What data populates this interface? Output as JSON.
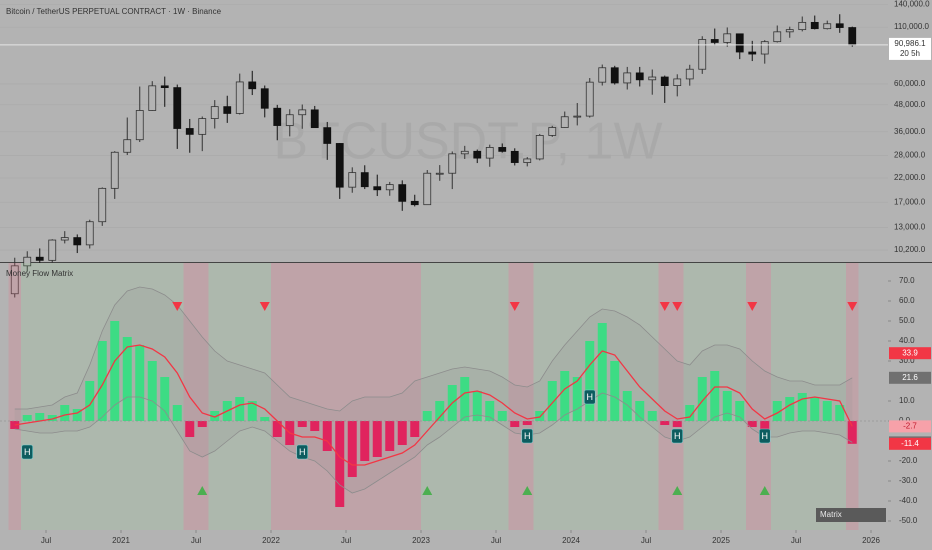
{
  "chart_data": [
    {
      "type": "candlestick",
      "title": "Bitcoin / TetherUS PERPETUAL CONTRACT · 1W · Binance",
      "watermark": "BTCUSDT.P, 1W",
      "x": [
        "2020-04",
        "2020-05",
        "2020-06",
        "2020-07",
        "2020-08",
        "2020-09",
        "2020-10",
        "2020-11",
        "2020-12",
        "2021-01",
        "2021-02",
        "2021-03",
        "2021-04",
        "2021-05",
        "2021-06",
        "2021-07",
        "2021-08",
        "2021-09",
        "2021-10",
        "2021-11",
        "2021-12",
        "2022-01",
        "2022-02",
        "2022-03",
        "2022-04",
        "2022-05",
        "2022-06",
        "2022-07",
        "2022-08",
        "2022-09",
        "2022-10",
        "2022-11",
        "2022-12",
        "2023-01",
        "2023-02",
        "2023-03",
        "2023-04",
        "2023-05",
        "2023-06",
        "2023-07",
        "2023-08",
        "2023-09",
        "2023-10",
        "2023-11",
        "2023-12",
        "2024-01",
        "2024-02",
        "2024-03",
        "2024-04",
        "2024-05",
        "2024-06",
        "2024-07",
        "2024-08",
        "2024-09",
        "2024-10",
        "2024-11",
        "2024-12",
        "2025-01",
        "2025-02",
        "2025-03",
        "2025-04",
        "2025-05",
        "2025-06",
        "2025-07",
        "2025-08",
        "2025-09",
        "2025-10",
        "2025-11"
      ],
      "open": [
        6400,
        8620,
        9450,
        9140,
        11350,
        11650,
        10780,
        13800,
        19700,
        28950,
        33100,
        45200,
        58800,
        57700,
        37300,
        35040,
        41460,
        47100,
        43800,
        61300,
        57000,
        46300,
        38500,
        43200,
        45500,
        37650,
        31800,
        19950,
        23300,
        20050,
        19400,
        20500,
        17150,
        16550,
        23150,
        23150,
        28470,
        29250,
        27200,
        30480,
        29230,
        25940,
        26960,
        34650,
        37700,
        42280,
        42580,
        61150,
        71300,
        60650,
        67500,
        62700,
        64600,
        58950,
        63300,
        70200,
        96400,
        93400,
        102400,
        84350,
        82550,
        94200,
        104600,
        107100,
        115700,
        108200,
        114000,
        109500
      ],
      "high": [
        9400,
        10070,
        10380,
        11450,
        12480,
        12050,
        14100,
        19900,
        29300,
        41950,
        58350,
        61800,
        64900,
        59600,
        41300,
        42400,
        50500,
        52900,
        67000,
        69000,
        59000,
        48000,
        45800,
        48200,
        47450,
        40000,
        31950,
        24650,
        25200,
        22800,
        21100,
        21450,
        18400,
        23950,
        25250,
        29200,
        31000,
        29800,
        31400,
        31800,
        30200,
        27500,
        35200,
        38400,
        44700,
        48950,
        63900,
        73800,
        72800,
        71950,
        71950,
        70000,
        65600,
        66500,
        73600,
        99800,
        108350,
        109600,
        102700,
        95000,
        95750,
        111900,
        110500,
        123200,
        124450,
        117900,
        126200,
        110600
      ],
      "low": [
        6150,
        8100,
        8900,
        8900,
        10950,
        9880,
        10370,
        13200,
        17600,
        28100,
        32300,
        45000,
        47000,
        30000,
        28800,
        29300,
        37300,
        39600,
        43300,
        53300,
        42000,
        32900,
        34300,
        37200,
        37600,
        26700,
        17600,
        18800,
        19550,
        18150,
        18200,
        15500,
        16250,
        16500,
        21350,
        19550,
        26950,
        25800,
        24800,
        28850,
        25150,
        24900,
        26550,
        34100,
        37600,
        38550,
        41900,
        59000,
        59600,
        56550,
        58400,
        53500,
        49000,
        52550,
        58900,
        66800,
        90500,
        89200,
        78200,
        76600,
        74500,
        93350,
        98200,
        105100,
        107300,
        107300,
        103500,
        89250
      ],
      "close": [
        8620,
        9450,
        9140,
        11350,
        11650,
        10780,
        13800,
        19700,
        28950,
        33100,
        45200,
        58800,
        57700,
        37300,
        35040,
        41460,
        47100,
        43800,
        61300,
        57000,
        46300,
        38500,
        43200,
        45500,
        37650,
        31800,
        19950,
        23300,
        20050,
        19400,
        20500,
        17150,
        16550,
        23150,
        23150,
        28470,
        29250,
        27200,
        30480,
        29230,
        25940,
        26960,
        34650,
        37700,
        42280,
        42580,
        61150,
        71300,
        60650,
        67500,
        62700,
        64600,
        58950,
        63300,
        70200,
        96400,
        93400,
        102400,
        84350,
        82550,
        94200,
        104600,
        107100,
        115700,
        108200,
        114000,
        109500,
        90986.1
      ],
      "last_price_label": "90,986.1",
      "countdown": "20 5h",
      "up_color": "#333333",
      "down_color": "#111111",
      "log": true,
      "grid": true,
      "ylim": [
        8980,
        146900
      ],
      "yticks": [
        {
          "value": 140000,
          "label": "140,000.0"
        },
        {
          "value": 110000,
          "label": "110,000.0"
        },
        {
          "value": 60000,
          "label": "60,000.0"
        },
        {
          "value": 48000,
          "label": "48,000.0"
        },
        {
          "value": 36000,
          "label": "36,000.0"
        },
        {
          "value": 28000,
          "label": "28,000.0"
        },
        {
          "value": 22000,
          "label": "22,000.0"
        },
        {
          "value": 17000,
          "label": "17,000.0"
        },
        {
          "value": 13000,
          "label": "13,000.0"
        },
        {
          "value": 10200,
          "label": "10,200.0"
        }
      ]
    },
    {
      "type": "bar",
      "title": "Money Flow Matrix",
      "badge": "Matrix",
      "x": [
        "2020-04",
        "2020-05",
        "2020-06",
        "2020-07",
        "2020-08",
        "2020-09",
        "2020-10",
        "2020-11",
        "2020-12",
        "2021-01",
        "2021-02",
        "2021-03",
        "2021-04",
        "2021-05",
        "2021-06",
        "2021-07",
        "2021-08",
        "2021-09",
        "2021-10",
        "2021-11",
        "2021-12",
        "2022-01",
        "2022-02",
        "2022-03",
        "2022-04",
        "2022-05",
        "2022-06",
        "2022-07",
        "2022-08",
        "2022-09",
        "2022-10",
        "2022-11",
        "2022-12",
        "2023-01",
        "2023-02",
        "2023-03",
        "2023-04",
        "2023-05",
        "2023-06",
        "2023-07",
        "2023-08",
        "2023-09",
        "2023-10",
        "2023-11",
        "2023-12",
        "2024-01",
        "2024-02",
        "2024-03",
        "2024-04",
        "2024-05",
        "2024-06",
        "2024-07",
        "2024-08",
        "2024-09",
        "2024-10",
        "2024-11",
        "2024-12",
        "2025-01",
        "2025-02",
        "2025-03",
        "2025-04",
        "2025-05",
        "2025-06",
        "2025-07",
        "2025-08",
        "2025-09",
        "2025-10",
        "2025-11"
      ],
      "values": [
        -4,
        3,
        4,
        3,
        8,
        6,
        20,
        40,
        50,
        42,
        38,
        30,
        22,
        8,
        -8,
        -3,
        5,
        10,
        12,
        10,
        2,
        -8,
        -12,
        -3,
        -5,
        -15,
        -43,
        -28,
        -20,
        -18,
        -15,
        -12,
        -8,
        5,
        10,
        18,
        22,
        15,
        10,
        5,
        -3,
        -2,
        5,
        20,
        25,
        22,
        40,
        49,
        30,
        15,
        10,
        5,
        -2,
        -3,
        8,
        22,
        25,
        15,
        10,
        -3,
        -5,
        10,
        12,
        14,
        12,
        10,
        8,
        -11.4
      ],
      "positive_color": "#3ddc84",
      "negative_color": "#e0245e",
      "value_label_color": "#f23645",
      "lines": [
        {
          "values": [
            6,
            6,
            7,
            8,
            12,
            14,
            28,
            45,
            58,
            65,
            67,
            66,
            63,
            58,
            50,
            42,
            35,
            30,
            28,
            26,
            24,
            18,
            12,
            10,
            8,
            6,
            5,
            10,
            12,
            12,
            12,
            14,
            20,
            22,
            24,
            26,
            27,
            26,
            25,
            22,
            18,
            17,
            20,
            30,
            38,
            45,
            52,
            56,
            55,
            52,
            48,
            42,
            36,
            30,
            28,
            35,
            38,
            38,
            36,
            30,
            25,
            22,
            20,
            20,
            18,
            18,
            18,
            21.6
          ],
          "color": "#8c8c8c",
          "label_color": "#707070"
        },
        {
          "values": [
            -4,
            -5,
            -6,
            -6,
            -5,
            -5,
            -3,
            2,
            8,
            12,
            12,
            10,
            5,
            -5,
            -15,
            -18,
            -15,
            -10,
            -5,
            -3,
            -5,
            -10,
            -15,
            -18,
            -20,
            -25,
            -32,
            -36,
            -34,
            -30,
            -26,
            -22,
            -18,
            -12,
            -8,
            -3,
            2,
            3,
            2,
            -2,
            -6,
            -7,
            -6,
            -2,
            3,
            6,
            10,
            14,
            12,
            8,
            2,
            -3,
            -8,
            -10,
            -8,
            -3,
            2,
            4,
            2,
            -4,
            -8,
            -8,
            -6,
            -5,
            -5,
            -6,
            -7,
            -10.7
          ],
          "color": "#8c8c8c",
          "label_color": "#707070"
        },
        {
          "values": [
            -2,
            -1,
            0,
            1,
            3,
            4,
            8,
            18,
            30,
            37,
            38,
            36,
            32,
            24,
            12,
            4,
            2,
            5,
            8,
            9,
            6,
            0,
            -6,
            -8,
            -8,
            -10,
            -18,
            -22,
            -22,
            -20,
            -18,
            -16,
            -12,
            -5,
            2,
            9,
            14,
            15,
            13,
            9,
            4,
            1,
            2,
            9,
            16,
            20,
            28,
            35,
            33,
            25,
            17,
            11,
            5,
            1,
            2,
            10,
            17,
            17,
            14,
            6,
            1,
            4,
            8,
            11,
            12,
            11,
            10,
            -2.7
          ],
          "color": "#f23645",
          "label_color": "#f7a1a9"
        }
      ],
      "levels": [
        {
          "value": 33.9,
          "color": "#f23645"
        }
      ],
      "markers": {
        "sell": {
          "x": [
            "2021-05",
            "2021-12",
            "2023-08",
            "2024-08",
            "2024-09",
            "2025-03",
            "2025-11"
          ],
          "color": "#f23645"
        },
        "buy": {
          "x": [
            "2021-07",
            "2023-01",
            "2023-09",
            "2024-09",
            "2025-04"
          ],
          "color": "#4caf50"
        },
        "h": {
          "label": "H",
          "x": [
            "2020-05",
            "2022-03",
            "2023-09",
            "2024-02",
            "2024-09",
            "2025-04"
          ],
          "y": [
            -15.5,
            -15.5,
            -7.5,
            12,
            -7.5,
            -7.5
          ],
          "color": "#0d5c5f"
        }
      },
      "ylim": [
        -54.5,
        79
      ],
      "yticks": [
        {
          "value": 70,
          "label": "70.0"
        },
        {
          "value": 60,
          "label": "60.0"
        },
        {
          "value": 50,
          "label": "50.0"
        },
        {
          "value": 40,
          "label": "40.0"
        },
        {
          "value": 30,
          "label": "30.0"
        },
        {
          "value": 10,
          "label": "10.0"
        },
        {
          "value": 0,
          "label": "0.0"
        },
        {
          "value": -20,
          "label": "-20.0"
        },
        {
          "value": -30,
          "label": "-30.0"
        },
        {
          "value": -40,
          "label": "-40.0"
        },
        {
          "value": -50,
          "label": "-50.0"
        }
      ],
      "xticks": [
        {
          "value": "2020-07",
          "label": "Jul"
        },
        {
          "value": "2021-01",
          "label": "2021"
        },
        {
          "value": "2021-07",
          "label": "Jul"
        },
        {
          "value": "2022-01",
          "label": "2022"
        },
        {
          "value": "2022-07",
          "label": "Jul"
        },
        {
          "value": "2023-01",
          "label": "2023"
        },
        {
          "value": "2023-07",
          "label": "Jul"
        },
        {
          "value": "2024-01",
          "label": "2024"
        },
        {
          "value": "2024-07",
          "label": "Jul"
        },
        {
          "value": "2025-01",
          "label": "2025"
        },
        {
          "value": "2025-07",
          "label": "Jul"
        },
        {
          "value": "2026-01",
          "label": "2026"
        }
      ]
    }
  ]
}
